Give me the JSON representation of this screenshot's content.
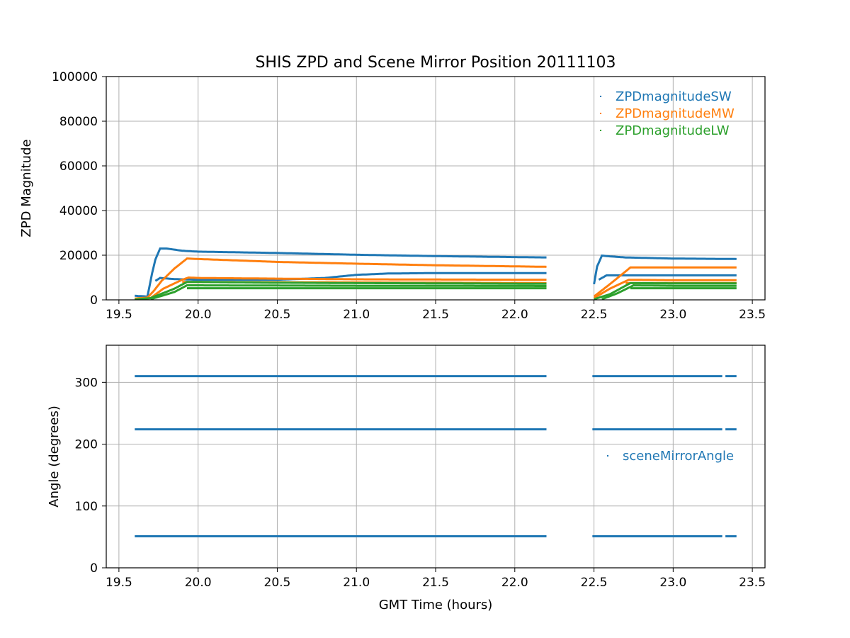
{
  "title": "SHIS ZPD and Scene Mirror Position 20111103",
  "chart_data": [
    {
      "type": "scatter",
      "xlabel": "",
      "ylabel": "ZPD Magnitude",
      "xlim": [
        19.42,
        23.58
      ],
      "ylim": [
        0,
        100000
      ],
      "xticks": [
        "19.5",
        "20.0",
        "20.5",
        "21.0",
        "21.5",
        "22.0",
        "22.5",
        "23.0",
        "23.5"
      ],
      "yticks": [
        "0",
        "20000",
        "40000",
        "60000",
        "80000",
        "100000"
      ],
      "grid": true,
      "legend_position": "top-right",
      "series": [
        {
          "name": "ZPDmagnitudeSW",
          "color": "#1f77b4",
          "traces": [
            [
              [
                19.6,
                1800
              ],
              [
                19.68,
                1500
              ],
              [
                19.71,
                12000
              ],
              [
                19.73,
                18000
              ],
              [
                19.76,
                23000
              ],
              [
                19.8,
                23000
              ],
              [
                19.9,
                22000
              ],
              [
                20.0,
                21600
              ],
              [
                20.5,
                21000
              ],
              [
                21.0,
                20200
              ],
              [
                21.5,
                19600
              ],
              [
                22.2,
                19000
              ]
            ],
            [
              [
                19.73,
                8500
              ],
              [
                19.76,
                9800
              ],
              [
                19.85,
                9300
              ],
              [
                20.0,
                9000
              ],
              [
                20.5,
                9000
              ],
              [
                20.8,
                9800
              ],
              [
                21.0,
                11200
              ],
              [
                21.2,
                11800
              ],
              [
                21.5,
                12000
              ],
              [
                22.2,
                12000
              ]
            ],
            [
              [
                22.5,
                7000
              ],
              [
                22.52,
                15000
              ],
              [
                22.55,
                19800
              ],
              [
                22.6,
                19500
              ],
              [
                22.7,
                19000
              ],
              [
                23.0,
                18500
              ],
              [
                23.4,
                18300
              ]
            ],
            [
              [
                22.53,
                9000
              ],
              [
                22.58,
                11000
              ],
              [
                22.7,
                11000
              ],
              [
                23.0,
                11000
              ],
              [
                23.4,
                11000
              ]
            ]
          ]
        },
        {
          "name": "ZPDmagnitudeMW",
          "color": "#ff7f0e",
          "traces": [
            [
              [
                19.6,
                600
              ],
              [
                19.68,
                1000
              ],
              [
                19.72,
                4000
              ],
              [
                19.77,
                8500
              ],
              [
                19.85,
                14000
              ],
              [
                19.93,
                18500
              ],
              [
                20.0,
                18300
              ],
              [
                20.5,
                17000
              ],
              [
                21.0,
                16200
              ],
              [
                21.5,
                15500
              ],
              [
                22.2,
                14800
              ]
            ],
            [
              [
                19.62,
                300
              ],
              [
                19.7,
                800
              ],
              [
                19.78,
                5000
              ],
              [
                19.9,
                9000
              ],
              [
                19.94,
                10000
              ],
              [
                20.0,
                9800
              ],
              [
                20.5,
                9500
              ],
              [
                21.0,
                9200
              ],
              [
                21.5,
                9100
              ],
              [
                22.2,
                9000
              ]
            ],
            [
              [
                19.9,
                8000
              ],
              [
                20.0,
                8000
              ],
              [
                21.0,
                7800
              ],
              [
                22.2,
                7500
              ]
            ],
            [
              [
                22.5,
                1500
              ],
              [
                22.6,
                7000
              ],
              [
                22.73,
                14500
              ],
              [
                22.8,
                14500
              ],
              [
                23.0,
                14500
              ],
              [
                23.4,
                14500
              ]
            ],
            [
              [
                22.5,
                800
              ],
              [
                22.6,
                5000
              ],
              [
                22.72,
                9000
              ],
              [
                23.0,
                8800
              ],
              [
                23.4,
                8800
              ]
            ],
            [
              [
                22.7,
                7500
              ],
              [
                23.0,
                7500
              ],
              [
                23.4,
                7500
              ]
            ]
          ]
        },
        {
          "name": "ZPDmagnitudeLW",
          "color": "#2ca02c",
          "traces": [
            [
              [
                19.6,
                200
              ],
              [
                19.7,
                800
              ],
              [
                19.85,
                5000
              ],
              [
                19.93,
                8000
              ],
              [
                20.0,
                8000
              ],
              [
                20.5,
                7700
              ],
              [
                21.0,
                7500
              ],
              [
                21.5,
                7400
              ],
              [
                22.2,
                7200
              ]
            ],
            [
              [
                19.7,
                300
              ],
              [
                19.85,
                3500
              ],
              [
                19.93,
                6500
              ],
              [
                20.0,
                6500
              ],
              [
                21.0,
                6300
              ],
              [
                22.2,
                6200
              ]
            ],
            [
              [
                19.93,
                5200
              ],
              [
                20.0,
                5200
              ],
              [
                21.0,
                5200
              ],
              [
                22.2,
                5200
              ]
            ],
            [
              [
                22.5,
                300
              ],
              [
                22.6,
                2500
              ],
              [
                22.73,
                7500
              ],
              [
                23.0,
                7400
              ],
              [
                23.4,
                7400
              ]
            ],
            [
              [
                22.55,
                300
              ],
              [
                22.65,
                3000
              ],
              [
                22.75,
                6500
              ],
              [
                23.0,
                6300
              ],
              [
                23.4,
                6300
              ]
            ],
            [
              [
                22.73,
                5200
              ],
              [
                23.0,
                5200
              ],
              [
                23.4,
                5200
              ]
            ]
          ]
        }
      ]
    },
    {
      "type": "scatter",
      "xlabel": "GMT Time (hours)",
      "ylabel": "Angle (degrees)",
      "xlim": [
        19.42,
        23.58
      ],
      "ylim": [
        0,
        360
      ],
      "xticks": [
        "19.5",
        "20.0",
        "20.5",
        "21.0",
        "21.5",
        "22.0",
        "22.5",
        "23.0",
        "23.5"
      ],
      "yticks": [
        "0",
        "100",
        "200",
        "300"
      ],
      "grid": true,
      "legend_position": "center-right",
      "series": [
        {
          "name": "sceneMirrorAngle",
          "color": "#1f77b4",
          "levels": [
            310,
            224,
            51
          ],
          "segments": [
            [
              19.6,
              22.2
            ],
            [
              22.49,
              23.31
            ],
            [
              23.33,
              23.4
            ]
          ]
        }
      ]
    }
  ]
}
